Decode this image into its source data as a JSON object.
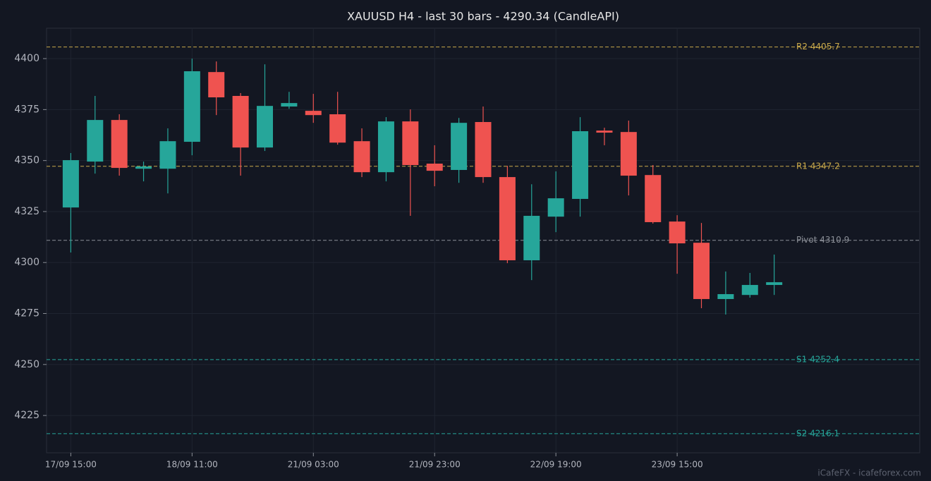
{
  "chart_data": {
    "type": "candlestick",
    "title": "XAUUSD H4 - last 30 bars - 4290.34 (CandleAPI)",
    "categories": [
      "17/09 15:00",
      null,
      null,
      null,
      null,
      "18/09 11:00",
      null,
      null,
      null,
      null,
      "21/09 03:00",
      null,
      null,
      null,
      null,
      "21/09 23:00",
      null,
      null,
      null,
      null,
      "22/09 19:00",
      null,
      null,
      null,
      null,
      "23/09 15:00",
      null,
      null,
      null,
      null
    ],
    "open": [
      4327.0,
      4349.5,
      4369.9,
      4346.0,
      4346.0,
      4359.2,
      4393.4,
      4381.7,
      4356.4,
      4376.5,
      4374.4,
      4372.7,
      4359.5,
      4344.3,
      4369.2,
      4348.5,
      4345.4,
      4368.9,
      4341.9,
      4301.1,
      4322.5,
      4331.2,
      4364.7,
      4364.0,
      4342.9,
      4320.1,
      4309.7,
      4282.1,
      4284.1,
      4289.0
    ],
    "high": [
      4353.7,
      4381.7,
      4372.7,
      4349.5,
      4365.8,
      4400.0,
      4398.6,
      4383.1,
      4397.2,
      4383.7,
      4382.7,
      4383.7,
      4365.8,
      4371.3,
      4375.1,
      4357.5,
      4370.9,
      4376.5,
      4347.4,
      4338.4,
      4344.7,
      4371.3,
      4366.1,
      4369.6,
      4347.8,
      4323.2,
      4319.4,
      4295.6,
      4294.9,
      4303.9
    ],
    "low": [
      4304.9,
      4343.6,
      4342.6,
      4339.8,
      4333.9,
      4352.6,
      4372.3,
      4342.6,
      4354.7,
      4375.4,
      4368.5,
      4357.8,
      4341.9,
      4339.8,
      4322.9,
      4337.4,
      4339.1,
      4339.1,
      4299.7,
      4291.4,
      4314.9,
      4322.5,
      4357.5,
      4332.9,
      4319.1,
      4294.5,
      4277.6,
      4274.5,
      4282.8,
      4284.1
    ],
    "close": [
      4350.2,
      4369.9,
      4346.4,
      4347.1,
      4359.5,
      4393.8,
      4381.0,
      4356.4,
      4376.8,
      4378.2,
      4372.3,
      4358.8,
      4344.3,
      4369.2,
      4347.8,
      4345.0,
      4368.5,
      4341.9,
      4301.1,
      4322.9,
      4331.5,
      4364.4,
      4363.7,
      4342.6,
      4319.8,
      4309.4,
      4282.1,
      4284.5,
      4289.0,
      4290.34
    ],
    "up_color": "#26a69a",
    "down_color": "#ef5350",
    "ylim": [
      4206.7,
      4414.9
    ],
    "yticks": [
      4225,
      4250,
      4275,
      4300,
      4325,
      4350,
      4375,
      4400
    ],
    "grid": true,
    "levels": [
      {
        "label": "R2 4405.7",
        "value": 4405.7,
        "color": "#c8a84a"
      },
      {
        "label": "R1 4347.2",
        "value": 4347.2,
        "color": "#c8a84a"
      },
      {
        "label": "Pivot 4310.9",
        "value": 4310.9,
        "color": "#8a8e96"
      },
      {
        "label": "S1 4252.4",
        "value": 4252.4,
        "color": "#26a69a"
      },
      {
        "label": "S2 4216.1",
        "value": 4216.1,
        "color": "#26a69a"
      }
    ]
  },
  "footer": {
    "watermark": "iCafeFX - icafeforex.com"
  }
}
